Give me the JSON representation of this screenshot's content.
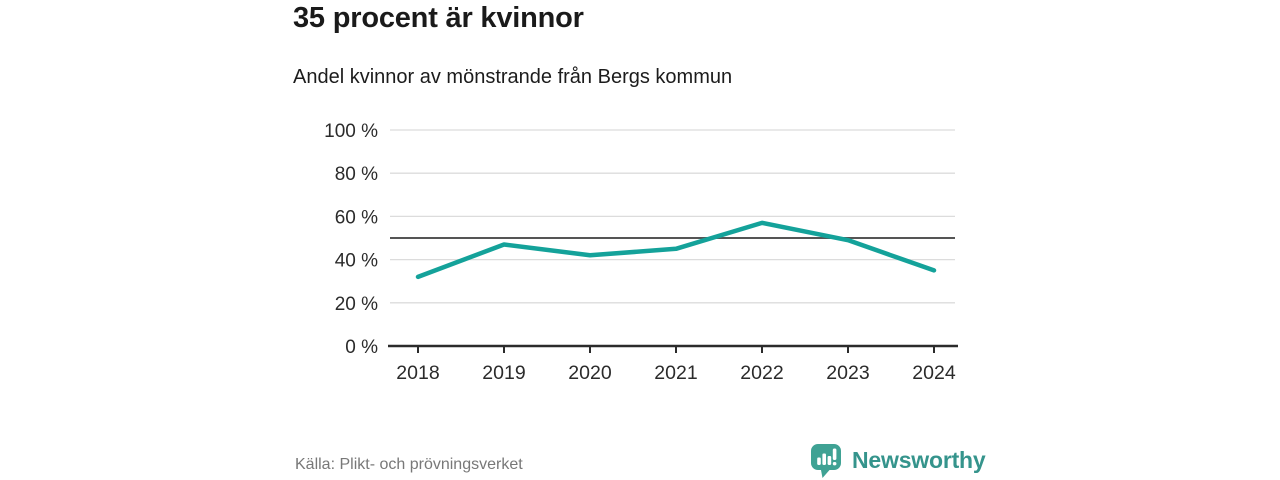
{
  "header": {
    "title": "35 procent är kvinnor",
    "subtitle": "Andel kvinnor av mönstrande från Bergs kommun"
  },
  "chart_data": {
    "type": "line",
    "title": "35 procent är kvinnor",
    "subtitle": "Andel kvinnor av mönstrande från Bergs kommun",
    "categories": [
      "2018",
      "2019",
      "2020",
      "2021",
      "2022",
      "2023",
      "2024"
    ],
    "series": [
      {
        "name": "Andel kvinnor av mönstrande",
        "values": [
          32,
          47,
          42,
          45,
          57,
          49,
          35
        ]
      }
    ],
    "ylim": [
      0,
      100
    ],
    "yticks": [
      {
        "value": 0,
        "label": "0 %"
      },
      {
        "value": 20,
        "label": "20 %"
      },
      {
        "value": 40,
        "label": "40 %"
      },
      {
        "value": 60,
        "label": "60 %"
      },
      {
        "value": 80,
        "label": "80 %"
      },
      {
        "value": 100,
        "label": "100 %"
      }
    ],
    "reference_line": 50,
    "grid": true,
    "legend": "none",
    "xlabel": "",
    "ylabel": ""
  },
  "footer": {
    "source": "Källa: Plikt- och prövningsverket",
    "brand": "Newsworthy"
  },
  "colors": {
    "line": "#14a29a",
    "reference_line": "#555555",
    "gridline": "#dcdcdc",
    "axis": "#2b2b2b",
    "tick_label": "#2b2b2b",
    "title_text": "#1a1a1a",
    "source_text": "#787878",
    "brand_text": "#35948c",
    "logo_fill": "#3fa294",
    "background": "#ffffff"
  }
}
